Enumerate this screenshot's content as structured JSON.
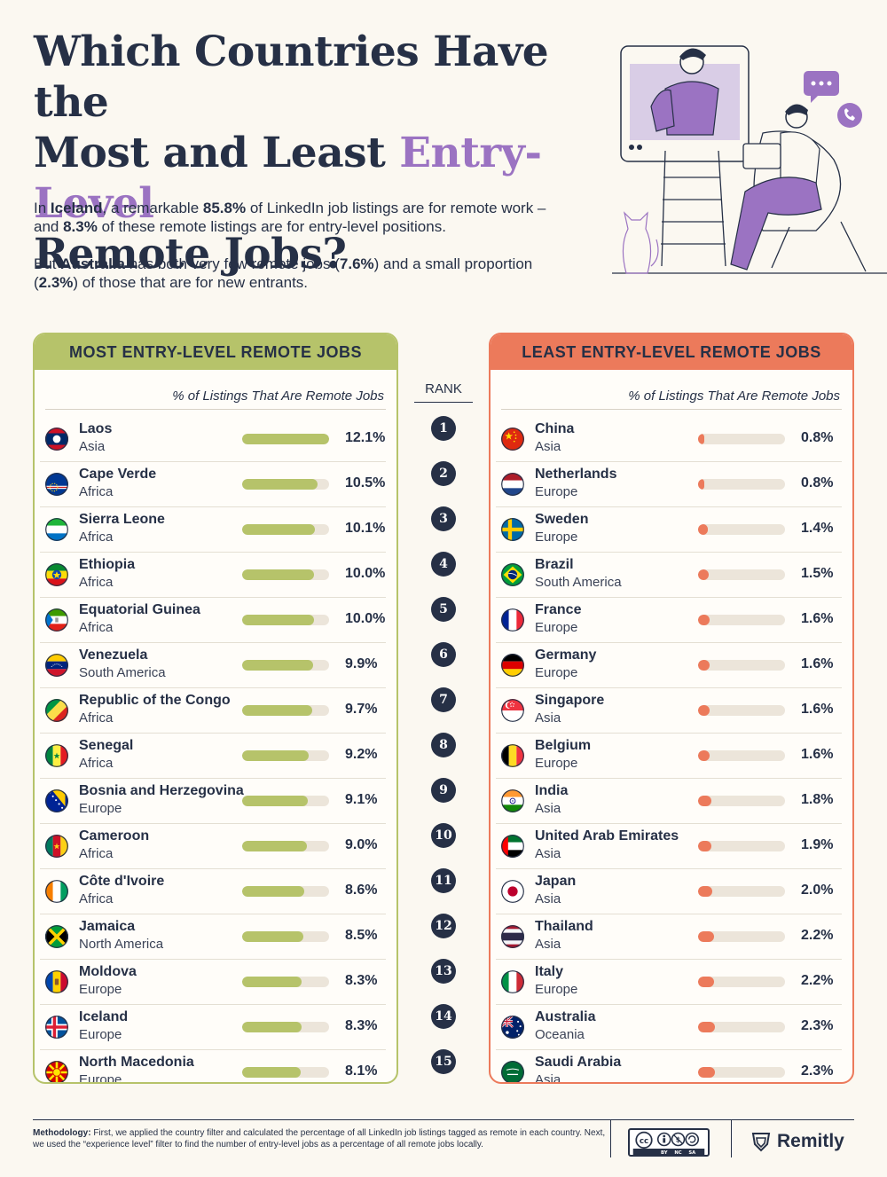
{
  "title": {
    "line1": "Which Countries Have the",
    "line2_start": "Most and Least ",
    "line2_accent": "Entry-Level",
    "line3": "Remote Jobs?"
  },
  "intro": {
    "p1": [
      "In ",
      "Iceland",
      ", a remarkable ",
      "85.8%",
      " of LinkedIn job listings are for remote work – and ",
      "8.3%",
      " of these remote listings are for entry-level positions."
    ],
    "p2": [
      "But ",
      "Australia",
      " has both very few remote jobs (",
      "7.6%",
      ") and a small proportion (",
      "2.3%",
      ") of those that are for new entrants."
    ]
  },
  "rank_header": "RANK",
  "chart_data": [
    {
      "type": "bar",
      "title": "MOST ENTRY-LEVEL REMOTE JOBS",
      "value_label": "% of Listings That Are Remote Jobs",
      "xlim": [
        0,
        12.1
      ],
      "ranks": [
        1,
        2,
        3,
        4,
        5,
        6,
        7,
        8,
        9,
        10,
        11,
        12,
        13,
        14,
        15
      ],
      "categories": [
        "Laos",
        "Cape Verde",
        "Sierra Leone",
        "Ethiopia",
        "Equatorial Guinea",
        "Venezuela",
        "Republic of the Congo",
        "Senegal",
        "Bosnia and Herzegovina",
        "Cameroon",
        "Côte d'Ivoire",
        "Jamaica",
        "Moldova",
        "Iceland",
        "North Macedonia"
      ],
      "regions": [
        "Asia",
        "Africa",
        "Africa",
        "Africa",
        "Africa",
        "South America",
        "Africa",
        "Africa",
        "Europe",
        "Africa",
        "Africa",
        "North America",
        "Europe",
        "Europe",
        "Europe"
      ],
      "values": [
        12.1,
        10.5,
        10.1,
        10.0,
        10.0,
        9.9,
        9.7,
        9.2,
        9.1,
        9.0,
        8.6,
        8.5,
        8.3,
        8.3,
        8.1
      ],
      "labels": [
        "12.1%",
        "10.5%",
        "10.1%",
        "10.0%",
        "10.0%",
        "9.9%",
        "9.7%",
        "9.2%",
        "9.1%",
        "9.0%",
        "8.6%",
        "8.5%",
        "8.3%",
        "8.3%",
        "8.1%"
      ],
      "flags": [
        "laos",
        "cape-verde",
        "sierra-leone",
        "ethiopia",
        "equatorial-guinea",
        "venezuela",
        "republic-of-the-congo",
        "senegal",
        "bosnia-and-herzegovina",
        "cameroon",
        "cote-divoire",
        "jamaica",
        "moldova",
        "iceland",
        "north-macedonia"
      ],
      "bar_color": "#b6c36a"
    },
    {
      "type": "bar",
      "title": "LEAST ENTRY-LEVEL REMOTE JOBS",
      "value_label": "% of Listings That Are Remote Jobs",
      "xlim": [
        0,
        12.1
      ],
      "ranks": [
        1,
        2,
        3,
        4,
        5,
        6,
        7,
        8,
        9,
        10,
        11,
        12,
        13,
        14,
        15
      ],
      "categories": [
        "China",
        "Netherlands",
        "Sweden",
        "Brazil",
        "France",
        "Germany",
        "Singapore",
        "Belgium",
        "India",
        "United Arab Emirates",
        "Japan",
        "Thailand",
        "Italy",
        "Australia",
        "Saudi Arabia"
      ],
      "regions": [
        "Asia",
        "Europe",
        "Europe",
        "South America",
        "Europe",
        "Europe",
        "Asia",
        "Europe",
        "Asia",
        "Asia",
        "Asia",
        "Asia",
        "Europe",
        "Oceania",
        "Asia"
      ],
      "values": [
        0.8,
        0.8,
        1.4,
        1.5,
        1.6,
        1.6,
        1.6,
        1.6,
        1.8,
        1.9,
        2.0,
        2.2,
        2.2,
        2.3,
        2.3
      ],
      "labels": [
        "0.8%",
        "0.8%",
        "1.4%",
        "1.5%",
        "1.6%",
        "1.6%",
        "1.6%",
        "1.6%",
        "1.8%",
        "1.9%",
        "2.0%",
        "2.2%",
        "2.2%",
        "2.3%",
        "2.3%"
      ],
      "flags": [
        "china",
        "netherlands",
        "sweden",
        "brazil",
        "france",
        "germany",
        "singapore",
        "belgium",
        "india",
        "uae",
        "japan",
        "thailand",
        "italy",
        "australia",
        "saudi-arabia"
      ],
      "bar_color": "#ec7a5b"
    }
  ],
  "colors": {
    "navy": "#263046",
    "green": "#b6c36a",
    "coral": "#ec7a5b",
    "purple": "#9b73c2",
    "track": "#ece5da"
  },
  "footer": {
    "methodology_label": "Methodology:",
    "methodology_text": " First, we applied the country filter and calculated the percentage of all LinkedIn job listings tagged as remote in each country. Next, we used the “experience level” filter to find the number of entry-level jobs as a percentage of all remote jobs locally.",
    "license": {
      "symbol": "cc",
      "items": [
        "BY",
        "NC",
        "SA"
      ]
    },
    "brand": "Remitly"
  }
}
